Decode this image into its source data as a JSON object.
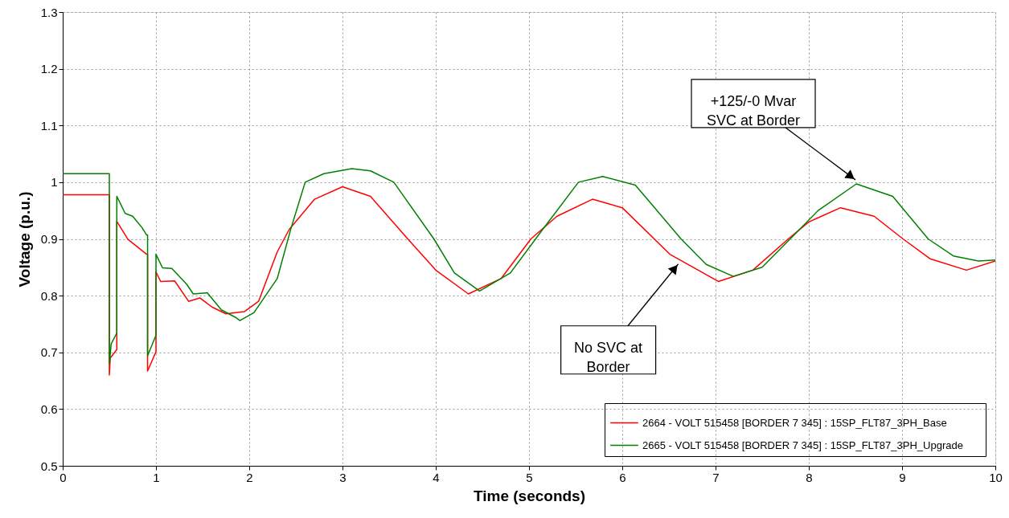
{
  "chart_data": {
    "type": "line",
    "xlabel": "Time (seconds)",
    "ylabel": "Voltage (p.u.)",
    "xlim": [
      0,
      10
    ],
    "xticks": [
      0,
      1,
      2,
      3,
      4,
      5,
      6,
      7,
      8,
      9,
      10
    ],
    "ylim": [
      0.5,
      1.3
    ],
    "yticks": [
      0.5,
      0.6,
      0.7,
      0.8,
      0.9,
      1,
      1.1,
      1.2,
      1.3
    ],
    "grid": true,
    "legend": "bottom right",
    "marker": "none",
    "line_style": "solid",
    "series": [
      {
        "name": "2664 - VOLT  515458 [BORDER      7 345] : 15SP_FLT87_3PH_Base",
        "color": "#ff0000",
        "x": [
          0,
          0.5,
          0.5,
          0.51,
          0.58,
          0.58,
          0.7,
          0.9,
          0.91,
          0.91,
          1.0,
          1.0,
          1.05,
          1.2,
          1.35,
          1.47,
          1.6,
          1.75,
          1.95,
          2.1,
          2.3,
          2.43,
          2.7,
          3.0,
          3.3,
          3.7,
          4.0,
          4.35,
          4.7,
          5.02,
          5.3,
          5.68,
          6.0,
          6.51,
          7.03,
          7.4,
          7.78,
          8.0,
          8.34,
          8.7,
          9.01,
          9.3,
          9.69,
          10
        ],
        "values": [
          0.978,
          0.978,
          0.66,
          0.69,
          0.705,
          0.931,
          0.899,
          0.873,
          0.873,
          0.667,
          0.701,
          0.842,
          0.825,
          0.826,
          0.79,
          0.796,
          0.78,
          0.768,
          0.772,
          0.79,
          0.877,
          0.917,
          0.97,
          0.992,
          0.975,
          0.9,
          0.845,
          0.803,
          0.83,
          0.9,
          0.94,
          0.97,
          0.955,
          0.873,
          0.825,
          0.845,
          0.9,
          0.93,
          0.955,
          0.94,
          0.9,
          0.865,
          0.845,
          0.861
        ]
      },
      {
        "name": "2665 - VOLT  515458 [BORDER      7 345] : 15SP_FLT87_3PH_Upgrade",
        "color": "#008000",
        "x": [
          0,
          0.5,
          0.5,
          0.52,
          0.58,
          0.58,
          0.67,
          0.75,
          0.85,
          0.9,
          0.91,
          0.91,
          1.0,
          1.0,
          1.07,
          1.17,
          1.33,
          1.4,
          1.55,
          1.7,
          1.85,
          1.9,
          2.05,
          2.3,
          2.45,
          2.6,
          2.8,
          3.1,
          3.3,
          3.55,
          3.98,
          4.2,
          4.47,
          4.8,
          5.13,
          5.53,
          5.79,
          6.14,
          6.63,
          6.9,
          7.19,
          7.5,
          7.8,
          8.1,
          8.51,
          8.9,
          9.28,
          9.55,
          9.82,
          10
        ],
        "values": [
          1.015,
          1.015,
          0.68,
          0.715,
          0.734,
          0.975,
          0.945,
          0.94,
          0.92,
          0.907,
          0.907,
          0.694,
          0.73,
          0.873,
          0.849,
          0.848,
          0.82,
          0.803,
          0.805,
          0.775,
          0.762,
          0.756,
          0.77,
          0.83,
          0.92,
          1.0,
          1.015,
          1.024,
          1.02,
          1.0,
          0.9,
          0.84,
          0.808,
          0.84,
          0.913,
          1.0,
          1.01,
          0.995,
          0.9,
          0.855,
          0.834,
          0.85,
          0.9,
          0.95,
          0.997,
          0.975,
          0.9,
          0.87,
          0.861,
          0.863
        ]
      }
    ],
    "annotations": [
      {
        "text": "+125/-0 Mvar\nSVC at Border",
        "x": 8.5,
        "y": 1.0
      },
      {
        "text": "No SVC at\nBorder",
        "x": 6.6,
        "y": 0.86
      }
    ]
  }
}
